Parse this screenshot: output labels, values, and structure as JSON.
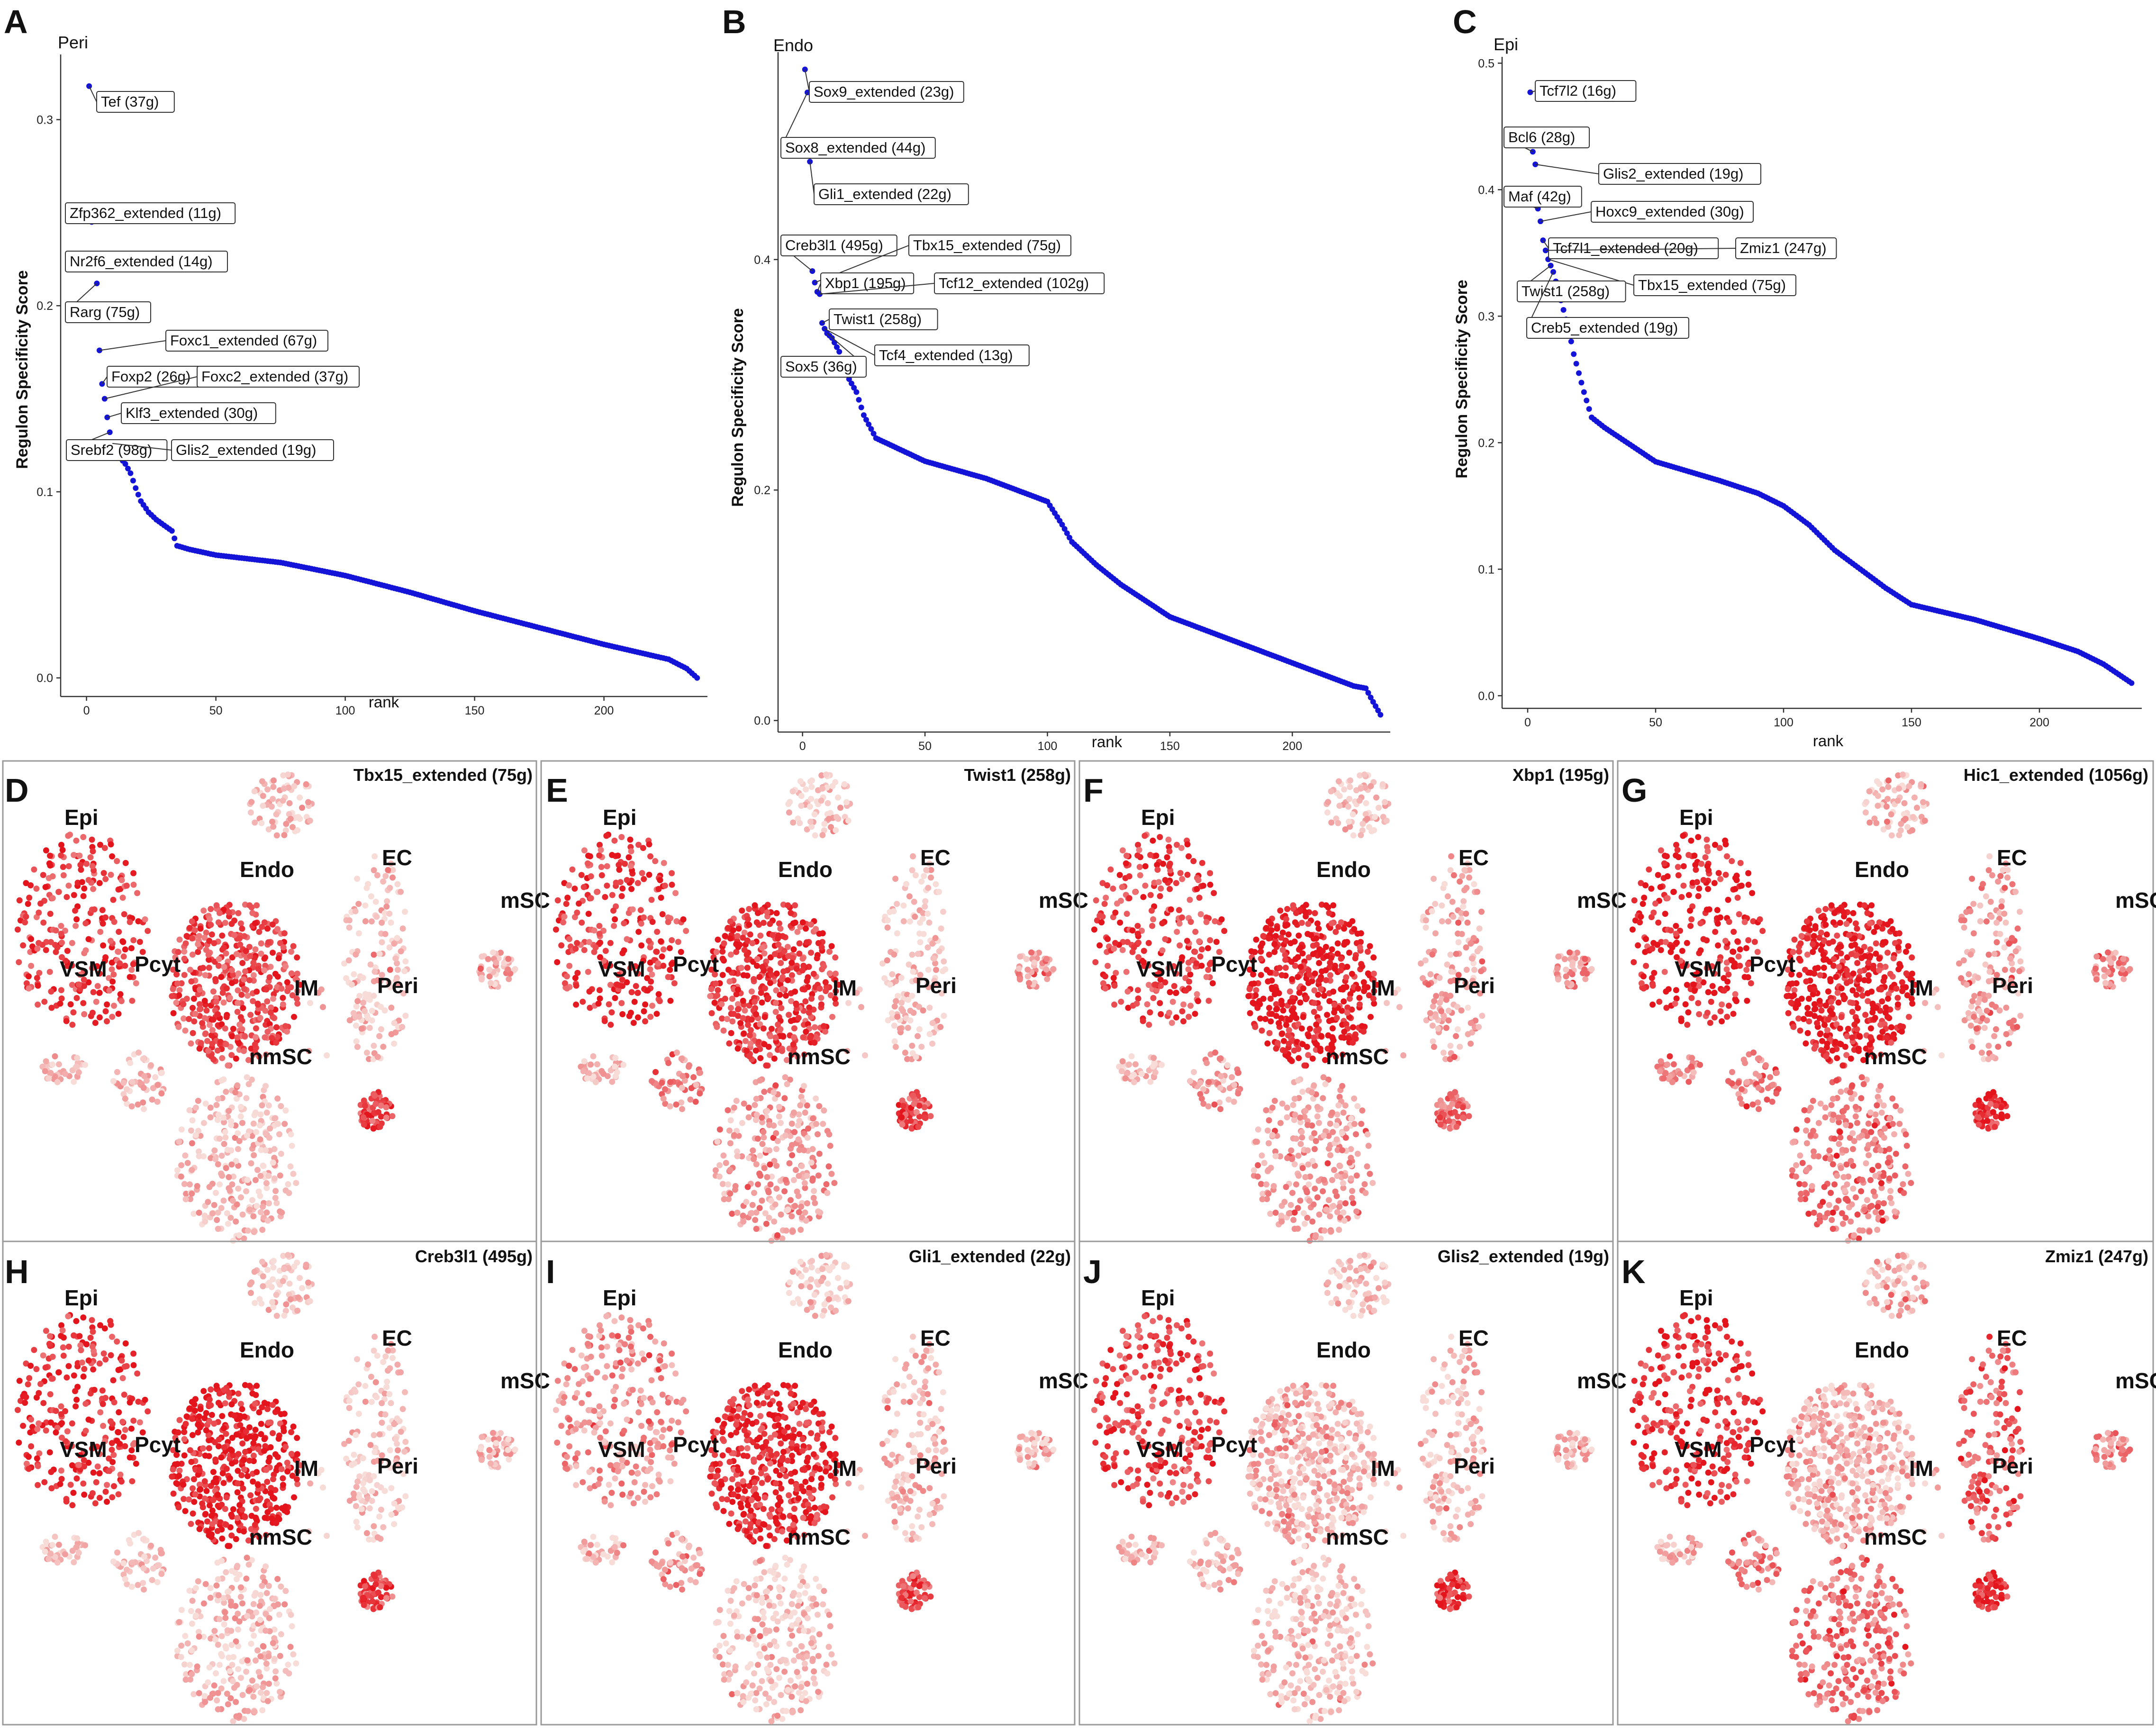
{
  "chart_data": [
    {
      "panel": "A",
      "type": "scatter",
      "title": "Peri",
      "xlabel": "rank",
      "ylabel": "Regulon Specificity Score",
      "xlim": [
        -10,
        240
      ],
      "ylim": [
        -0.01,
        0.335
      ],
      "xticks": [
        0,
        50,
        100,
        150,
        200
      ],
      "xtick_labels": [
        "0",
        "50",
        "100",
        "150",
        "200"
      ],
      "yticks": [
        0.0,
        0.1,
        0.2,
        0.3
      ],
      "ytick_labels": [
        "0.0",
        "0.1",
        "0.2",
        "0.3"
      ],
      "n_points": 236,
      "rank_rss_anchors": [
        [
          1,
          0.318
        ],
        [
          2,
          0.245
        ],
        [
          3,
          0.221
        ],
        [
          4,
          0.212
        ],
        [
          5,
          0.176
        ],
        [
          6,
          0.158
        ],
        [
          7,
          0.15
        ],
        [
          8,
          0.14
        ],
        [
          9,
          0.132
        ],
        [
          10,
          0.126
        ],
        [
          12,
          0.12
        ],
        [
          15,
          0.115
        ],
        [
          17,
          0.11
        ],
        [
          19,
          0.102
        ],
        [
          21,
          0.095
        ],
        [
          24,
          0.089
        ],
        [
          27,
          0.085
        ],
        [
          30,
          0.082
        ],
        [
          33,
          0.079
        ],
        [
          34,
          0.075
        ],
        [
          35,
          0.071
        ],
        [
          40,
          0.069
        ],
        [
          50,
          0.066
        ],
        [
          75,
          0.062
        ],
        [
          100,
          0.055
        ],
        [
          125,
          0.046
        ],
        [
          150,
          0.036
        ],
        [
          175,
          0.027
        ],
        [
          200,
          0.018
        ],
        [
          225,
          0.01
        ],
        [
          232,
          0.005
        ],
        [
          236,
          0.0
        ]
      ],
      "annotations": [
        {
          "label": "Tef (37g)",
          "rank": 1
        },
        {
          "label": "Zfp362_extended (11g)",
          "rank": 2
        },
        {
          "label": "Nr2f6_extended (14g)",
          "rank": 3
        },
        {
          "label": "Rarg (75g)",
          "rank": 4
        },
        {
          "label": "Foxc1_extended (67g)",
          "rank": 5
        },
        {
          "label": "Foxp2 (26g)",
          "rank": 6
        },
        {
          "label": "Foxc2_extended (37g)",
          "rank": 7
        },
        {
          "label": "Klf3_extended (30g)",
          "rank": 8
        },
        {
          "label": "Srebf2 (98g)",
          "rank": 9
        },
        {
          "label": "Glis2_extended (19g)",
          "rank": 10
        }
      ]
    },
    {
      "panel": "B",
      "type": "scatter",
      "title": "Endo",
      "xlabel": "rank",
      "ylabel": "Regulon Specificity Score",
      "xlim": [
        -10,
        240
      ],
      "ylim": [
        -0.01,
        0.58
      ],
      "xticks": [
        0,
        50,
        100,
        150,
        200
      ],
      "xtick_labels": [
        "0",
        "50",
        "100",
        "150",
        "200"
      ],
      "yticks": [
        0.0,
        0.2,
        0.4
      ],
      "ytick_labels": [
        "0.0",
        "0.2",
        "0.4"
      ],
      "n_points": 236,
      "rank_rss_anchors": [
        [
          1,
          0.565
        ],
        [
          2,
          0.545
        ],
        [
          3,
          0.485
        ],
        [
          4,
          0.39
        ],
        [
          5,
          0.38
        ],
        [
          6,
          0.372
        ],
        [
          7,
          0.37
        ],
        [
          8,
          0.345
        ],
        [
          9,
          0.34
        ],
        [
          10,
          0.336
        ],
        [
          12,
          0.332
        ],
        [
          15,
          0.32
        ],
        [
          18,
          0.3
        ],
        [
          22,
          0.285
        ],
        [
          25,
          0.265
        ],
        [
          30,
          0.245
        ],
        [
          50,
          0.225
        ],
        [
          75,
          0.21
        ],
        [
          100,
          0.19
        ],
        [
          106,
          0.17
        ],
        [
          110,
          0.155
        ],
        [
          120,
          0.135
        ],
        [
          130,
          0.118
        ],
        [
          150,
          0.09
        ],
        [
          175,
          0.07
        ],
        [
          200,
          0.05
        ],
        [
          225,
          0.03
        ],
        [
          230,
          0.028
        ],
        [
          232,
          0.02
        ],
        [
          236,
          0.005
        ]
      ],
      "annotations": [
        {
          "label": "Sox9_extended (23g)",
          "rank": 1
        },
        {
          "label": "Sox8_extended (44g)",
          "rank": 2
        },
        {
          "label": "Gli1_extended (22g)",
          "rank": 3
        },
        {
          "label": "Creb3l1 (495g)",
          "rank": 4
        },
        {
          "label": "Tbx15_extended (75g)",
          "rank": 5
        },
        {
          "label": "Xbp1 (195g)",
          "rank": 6
        },
        {
          "label": "Tcf12_extended (102g)",
          "rank": 7
        },
        {
          "label": "Twist1 (258g)",
          "rank": 8
        },
        {
          "label": "Tcf4_extended (13g)",
          "rank": 9
        },
        {
          "label": "Sox5 (36g)",
          "rank": 10
        }
      ]
    },
    {
      "panel": "C",
      "type": "scatter",
      "title": "Epi",
      "xlabel": "rank",
      "ylabel": "Regulon Specificity Score",
      "xlim": [
        -10,
        240
      ],
      "ylim": [
        -0.01,
        0.505
      ],
      "xticks": [
        0,
        50,
        100,
        150,
        200
      ],
      "xtick_labels": [
        "0",
        "50",
        "100",
        "150",
        "200"
      ],
      "yticks": [
        0.0,
        0.1,
        0.2,
        0.3,
        0.4,
        0.5
      ],
      "ytick_labels": [
        "0.0",
        "0.1",
        "0.2",
        "0.3",
        "0.4",
        "0.5"
      ],
      "n_points": 236,
      "rank_rss_anchors": [
        [
          1,
          0.477
        ],
        [
          2,
          0.43
        ],
        [
          3,
          0.42
        ],
        [
          4,
          0.385
        ],
        [
          5,
          0.375
        ],
        [
          6,
          0.36
        ],
        [
          7,
          0.352
        ],
        [
          8,
          0.345
        ],
        [
          9,
          0.34
        ],
        [
          10,
          0.335
        ],
        [
          12,
          0.32
        ],
        [
          14,
          0.305
        ],
        [
          16,
          0.29
        ],
        [
          18,
          0.27
        ],
        [
          20,
          0.255
        ],
        [
          22,
          0.24
        ],
        [
          25,
          0.22
        ],
        [
          30,
          0.212
        ],
        [
          50,
          0.185
        ],
        [
          75,
          0.17
        ],
        [
          90,
          0.16
        ],
        [
          100,
          0.15
        ],
        [
          110,
          0.135
        ],
        [
          120,
          0.115
        ],
        [
          130,
          0.1
        ],
        [
          140,
          0.085
        ],
        [
          150,
          0.072
        ],
        [
          175,
          0.06
        ],
        [
          200,
          0.045
        ],
        [
          215,
          0.035
        ],
        [
          225,
          0.025
        ],
        [
          236,
          0.01
        ]
      ],
      "annotations": [
        {
          "label": "Tcf7l2 (16g)",
          "rank": 1
        },
        {
          "label": "Bcl6 (28g)",
          "rank": 2
        },
        {
          "label": "Glis2_extended (19g)",
          "rank": 3
        },
        {
          "label": "Maf (42g)",
          "rank": 4
        },
        {
          "label": "Hoxc9_extended (30g)",
          "rank": 5
        },
        {
          "label": "Tcf7l1_extended (20g)",
          "rank": 6
        },
        {
          "label": "Zmiz1 (247g)",
          "rank": 7
        },
        {
          "label": "Tbx15_extended (75g)",
          "rank": 8
        },
        {
          "label": "Twist1 (258g)",
          "rank": 9
        },
        {
          "label": "Creb5_extended (19g)",
          "rank": 10
        }
      ]
    },
    {
      "type": "heatmap",
      "subtype": "tsne-feature-plots",
      "cluster_labels": [
        "Epi",
        "Endo",
        "EC",
        "mSC",
        "VSM",
        "Pcyt",
        "IM",
        "Peri",
        "nmSC"
      ],
      "panels": [
        {
          "panel": "D",
          "title": "Tbx15_extended (75g)",
          "cluster_intensity": {
            "Epi": 0.75,
            "Endo": 0.7,
            "EC": 0.12,
            "mSC": 0.25,
            "VSM": 0.15,
            "Pcyt": 0.15,
            "IM": 0.1,
            "Peri": 0.7,
            "nmSC": 0.15,
            "top": 0.12
          }
        },
        {
          "panel": "E",
          "title": "Twist1 (258g)",
          "cluster_intensity": {
            "Epi": 0.75,
            "Endo": 0.75,
            "EC": 0.12,
            "mSC": 0.3,
            "VSM": 0.12,
            "Pcyt": 0.4,
            "IM": 0.1,
            "Peri": 0.65,
            "nmSC": 0.3,
            "top": 0.1
          }
        },
        {
          "panel": "F",
          "title": "Xbp1 (195g)",
          "cluster_intensity": {
            "Epi": 0.75,
            "Endo": 0.92,
            "EC": 0.25,
            "mSC": 0.35,
            "VSM": 0.12,
            "Pcyt": 0.3,
            "IM": 0.1,
            "Peri": 0.55,
            "nmSC": 0.3,
            "top": 0.12
          }
        },
        {
          "panel": "G",
          "title": "Hic1_extended (1056g)",
          "cluster_intensity": {
            "Epi": 0.85,
            "Endo": 0.88,
            "EC": 0.3,
            "mSC": 0.4,
            "VSM": 0.4,
            "Pcyt": 0.5,
            "IM": 0.15,
            "Peri": 0.8,
            "nmSC": 0.45,
            "top": 0.15
          }
        },
        {
          "panel": "H",
          "title": "Creb3l1 (495g)",
          "cluster_intensity": {
            "Epi": 0.8,
            "Endo": 0.9,
            "EC": 0.1,
            "mSC": 0.15,
            "VSM": 0.1,
            "Pcyt": 0.12,
            "IM": 0.08,
            "Peri": 0.65,
            "nmSC": 0.15,
            "top": 0.1
          }
        },
        {
          "panel": "I",
          "title": "Gli1_extended (22g)",
          "cluster_intensity": {
            "Epi": 0.35,
            "Endo": 0.82,
            "EC": 0.18,
            "mSC": 0.15,
            "VSM": 0.15,
            "Pcyt": 0.3,
            "IM": 0.1,
            "Peri": 0.7,
            "nmSC": 0.12,
            "top": 0.12
          }
        },
        {
          "panel": "J",
          "title": "Glis2_extended (19g)",
          "cluster_intensity": {
            "Epi": 0.7,
            "Endo": 0.2,
            "EC": 0.15,
            "mSC": 0.15,
            "VSM": 0.12,
            "Pcyt": 0.15,
            "IM": 0.1,
            "Peri": 0.75,
            "nmSC": 0.12,
            "top": 0.1
          }
        },
        {
          "panel": "K",
          "title": "Zmiz1 (247g)",
          "cluster_intensity": {
            "Epi": 0.8,
            "Endo": 0.22,
            "EC": 0.55,
            "mSC": 0.35,
            "VSM": 0.2,
            "Pcyt": 0.45,
            "IM": 0.15,
            "Peri": 0.8,
            "nmSC": 0.5,
            "top": 0.2
          }
        }
      ]
    }
  ],
  "colors": {
    "points": "#1414d8",
    "tsne_low": "#f7dcd8",
    "tsne_high": "#e4141c",
    "axis": "#333333",
    "panel_border": "#999999"
  }
}
